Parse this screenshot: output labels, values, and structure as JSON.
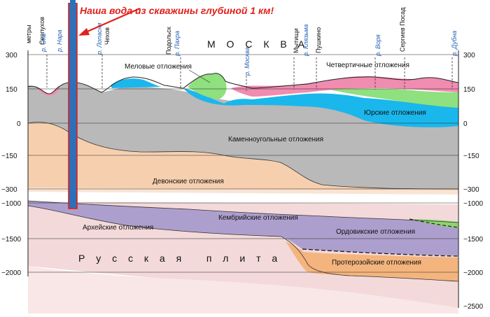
{
  "banner": "Наша вода из скважины глубиной 1 км!",
  "units_label": "метры",
  "moscow_label": "М О С К В А",
  "plate_label": "Р у с с к а я   п л и т а",
  "left_ticks": [
    "300",
    "150",
    "0",
    "−150",
    "−300",
    "−1000",
    "−1500",
    "−2000"
  ],
  "right_ticks": [
    "300",
    "150",
    "0",
    "−150",
    "−300",
    "−1000",
    "−1500",
    "−2000",
    "−2500"
  ],
  "cities": [
    {
      "name": "Серпухов"
    },
    {
      "name": "Чехов"
    },
    {
      "name": "Подольск"
    },
    {
      "name": "Мытищи"
    },
    {
      "name": "Пушкино"
    },
    {
      "name": "Сергиев Посад"
    }
  ],
  "rivers": [
    {
      "name": "р. Ока"
    },
    {
      "name": "р. Нара"
    },
    {
      "name": "р. Лопасня"
    },
    {
      "name": "р. Пахра"
    },
    {
      "name": "р. Москва"
    },
    {
      "name": "р. Клязьма"
    },
    {
      "name": "р. Воря"
    },
    {
      "name": "р. Дубна"
    }
  ],
  "layers": {
    "cretaceous": "Меловые отложения",
    "quaternary": "Четвертичные отложения",
    "jurassic": "Юрские отложения",
    "carboniferous": "Каменноугольные отложения",
    "devonian": "Девонские отложения",
    "cambrian": "Кембрийские отложения",
    "archean": "Архейские отложения",
    "ordovician": "Ордовикские отложения",
    "proterozoic": "Протерозойские отложения"
  },
  "colors": {
    "carboniferous": "#b9b9b9",
    "devonian": "#f6cfae",
    "jurassic": "#1ab7ec",
    "cretaceous": "#8fe07e",
    "quaternary": "#f08cb0",
    "cambrian": "#ad9fcd",
    "ordovician": "#8dd56f",
    "proterozoic": "#f4b47d",
    "basement": "#f3d9d9",
    "well": "#2f6fb6",
    "well_outline": "#e0201b"
  }
}
